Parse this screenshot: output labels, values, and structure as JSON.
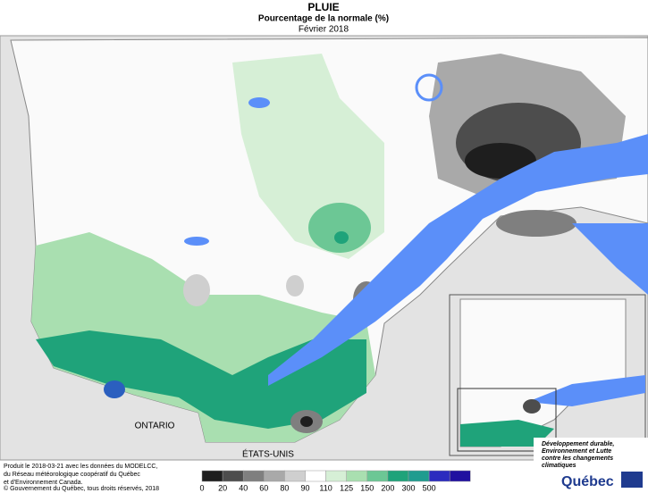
{
  "header": {
    "title": "PLUIE",
    "subtitle": "Pourcentage de la normale (%)",
    "period": "Février 2018"
  },
  "map_labels": {
    "ontario": "ONTARIO",
    "usa": "ÉTATS-UNIS"
  },
  "legend": {
    "labels": [
      "0",
      "20",
      "40",
      "60",
      "80",
      "90",
      "110",
      "125",
      "150",
      "200",
      "300",
      "500"
    ],
    "colors": [
      "#1e1e1e",
      "#4d4d4d",
      "#7f7f7f",
      "#a9a9a9",
      "#cfcfcf",
      "#ffffff",
      "#d6efd6",
      "#a9dfb0",
      "#6cc795",
      "#1fa37a",
      "#1f9c8f",
      "#2b2bbf",
      "#2010a0"
    ]
  },
  "credits": [
    "Produit le 2018-03-21 avec les données du MODELCC,",
    "du Réseau météorologique coopératif du Québec",
    "et d'Environnement Canada.",
    "© Gouvernement du Québec, tous droits réservés, 2018"
  ],
  "logo": {
    "ministry": [
      "Développement durable,",
      "Environnement et Lutte",
      "contre les changements",
      "climatiques"
    ],
    "name": "Québec"
  }
}
